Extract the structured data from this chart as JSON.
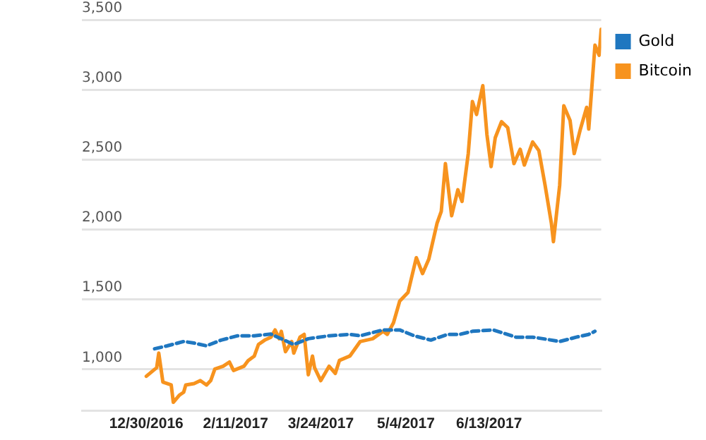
{
  "chart_data": {
    "type": "line",
    "xlim": [
      "2016-11-29",
      "2017-08-06"
    ],
    "xticks": [
      {
        "value": "2016-12-30",
        "label": "12/30/2016"
      },
      {
        "value": "2017-02-11",
        "label": "2/11/2017"
      },
      {
        "value": "2017-03-24",
        "label": "3/24/2017"
      },
      {
        "value": "2017-05-04",
        "label": "5/4/2017"
      },
      {
        "value": "2017-06-13",
        "label": "6/13/2017"
      }
    ],
    "ylim": [
      700,
      3500
    ],
    "yticks": [
      {
        "value": 1000,
        "label": "1,000"
      },
      {
        "value": 1500,
        "label": "1,500"
      },
      {
        "value": 2000,
        "label": "2,000"
      },
      {
        "value": 2500,
        "label": "2,500"
      },
      {
        "value": 3000,
        "label": "3,000"
      },
      {
        "value": 3500,
        "label": "3,500"
      }
    ],
    "grid": "y",
    "legend": "top right",
    "marker": "none",
    "series": [
      {
        "name": "Gold",
        "color": "#1f77c0",
        "line_style": "dashed",
        "x": [
          "2017-01-03",
          "2017-01-09",
          "2017-01-17",
          "2017-01-22",
          "2017-01-28",
          "2017-02-04",
          "2017-02-12",
          "2017-02-20",
          "2017-02-28",
          "2017-03-11",
          "2017-03-18",
          "2017-03-28",
          "2017-04-07",
          "2017-04-12",
          "2017-04-23",
          "2017-05-01",
          "2017-05-08",
          "2017-05-16",
          "2017-05-24",
          "2017-05-30",
          "2017-06-05",
          "2017-06-15",
          "2017-06-26",
          "2017-07-04",
          "2017-07-09",
          "2017-07-17",
          "2017-07-25",
          "2017-07-31",
          "2017-08-03"
        ],
        "values": [
          1145,
          1166,
          1197,
          1186,
          1166,
          1207,
          1238,
          1238,
          1250,
          1176,
          1217,
          1238,
          1248,
          1238,
          1280,
          1280,
          1238,
          1207,
          1248,
          1248,
          1270,
          1280,
          1228,
          1228,
          1217,
          1197,
          1228,
          1248,
          1270
        ]
      },
      {
        "name": "Bitcoin",
        "color": "#f7931e",
        "line_style": "solid",
        "x": [
          "2016-12-30",
          "2017-01-04",
          "2017-01-05",
          "2017-01-07",
          "2017-01-11",
          "2017-01-12",
          "2017-01-15",
          "2017-01-17",
          "2017-01-18",
          "2017-01-22",
          "2017-01-25",
          "2017-01-28",
          "2017-01-30",
          "2017-02-01",
          "2017-02-05",
          "2017-02-08",
          "2017-02-10",
          "2017-02-15",
          "2017-02-17",
          "2017-02-20",
          "2017-02-22",
          "2017-02-25",
          "2017-02-28",
          "2017-03-02",
          "2017-03-04",
          "2017-03-05",
          "2017-03-07",
          "2017-03-10",
          "2017-03-11",
          "2017-03-14",
          "2017-03-16",
          "2017-03-18",
          "2017-03-20",
          "2017-03-21",
          "2017-03-24",
          "2017-03-28",
          "2017-03-31",
          "2017-04-02",
          "2017-04-07",
          "2017-04-12",
          "2017-04-18",
          "2017-04-23",
          "2017-04-25",
          "2017-04-28",
          "2017-05-01",
          "2017-05-05",
          "2017-05-09",
          "2017-05-12",
          "2017-05-15",
          "2017-05-19",
          "2017-05-21",
          "2017-05-23",
          "2017-05-26",
          "2017-05-29",
          "2017-05-31",
          "2017-06-03",
          "2017-06-05",
          "2017-06-07",
          "2017-06-10",
          "2017-06-12",
          "2017-06-14",
          "2017-06-16",
          "2017-06-19",
          "2017-06-22",
          "2017-06-25",
          "2017-06-28",
          "2017-06-30",
          "2017-07-04",
          "2017-07-07",
          "2017-07-10",
          "2017-07-13",
          "2017-07-14",
          "2017-07-17",
          "2017-07-19",
          "2017-07-22",
          "2017-07-24",
          "2017-07-27",
          "2017-07-30",
          "2017-07-31",
          "2017-08-03",
          "2017-08-05",
          "2017-08-06"
        ],
        "values": [
          948,
          1010,
          1114,
          907,
          886,
          762,
          814,
          834,
          886,
          896,
          917,
          886,
          917,
          1000,
          1020,
          1050,
          990,
          1020,
          1060,
          1093,
          1176,
          1207,
          1228,
          1280,
          1217,
          1270,
          1124,
          1197,
          1114,
          1228,
          1248,
          959,
          1093,
          1010,
          917,
          1020,
          969,
          1062,
          1093,
          1197,
          1217,
          1270,
          1248,
          1331,
          1486,
          1548,
          1797,
          1683,
          1786,
          2045,
          2128,
          2470,
          2097,
          2283,
          2200,
          2542,
          2915,
          2822,
          3028,
          2677,
          2449,
          2656,
          2770,
          2728,
          2470,
          2573,
          2460,
          2625,
          2563,
          2314,
          2045,
          1911,
          2314,
          2884,
          2780,
          2542,
          2718,
          2873,
          2718,
          3318,
          3246,
          3432
        ]
      }
    ]
  }
}
